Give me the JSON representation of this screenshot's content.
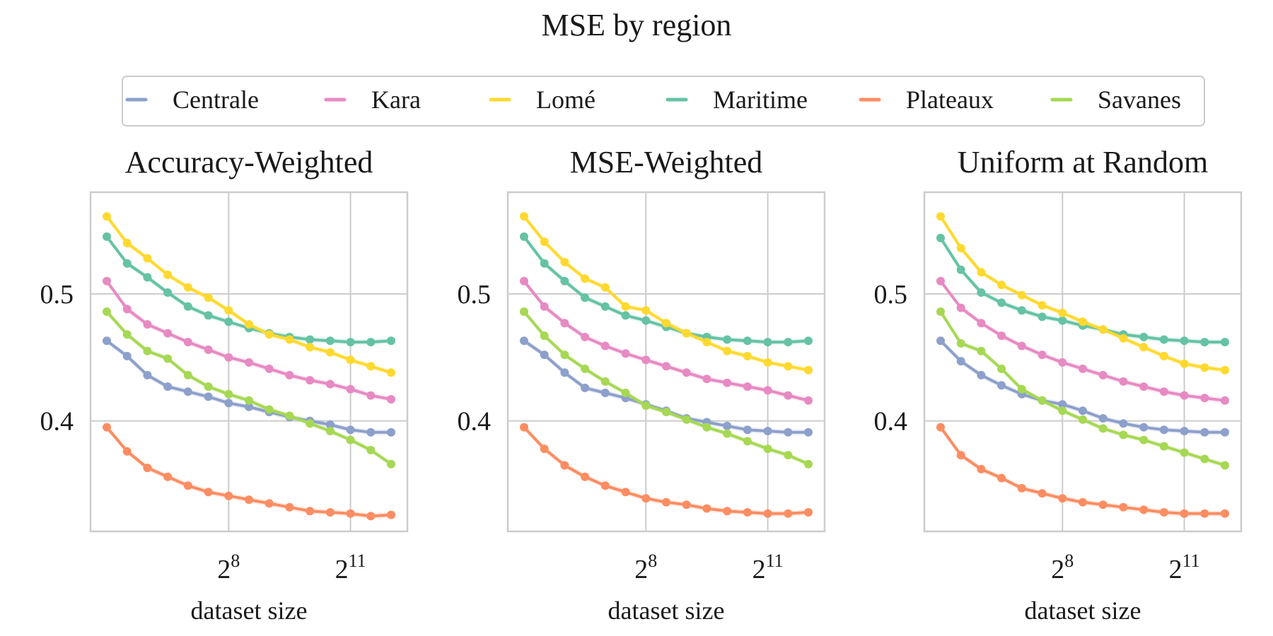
{
  "chart_data": {
    "type": "line",
    "title": "MSE by region",
    "xscale": "log2",
    "x": [
      32,
      45.25,
      64,
      90.5,
      128,
      181,
      256,
      362,
      512,
      724,
      1024,
      1448,
      2048,
      2896,
      4096
    ],
    "xticks": [
      {
        "value": 256,
        "base": "2",
        "exp": "8"
      },
      {
        "value": 2048,
        "base": "2",
        "exp": "11"
      }
    ],
    "xlim_log2": [
      4.6,
      12.4
    ],
    "ylim": [
      0.313,
      0.58
    ],
    "yticks": [
      {
        "value": 0.4,
        "label": "0.4"
      },
      {
        "value": 0.5,
        "label": "0.5"
      }
    ],
    "legend": {
      "position": "top-center",
      "entries": [
        "Centrale",
        "Kara",
        "Lomé",
        "Maritime",
        "Plateaux",
        "Savanes"
      ]
    },
    "series_colors": {
      "Centrale": "#8da0cb",
      "Kara": "#e78ac3",
      "Lomé": "#ffd92f",
      "Maritime": "#66c2a5",
      "Plateaux": "#fc8d62",
      "Savanes": "#a6d854"
    },
    "panels": [
      {
        "title": "Accuracy-Weighted",
        "xlabel": "dataset size",
        "series": [
          {
            "name": "Centrale",
            "values": [
              0.463,
              0.451,
              0.436,
              0.427,
              0.423,
              0.419,
              0.414,
              0.411,
              0.407,
              0.403,
              0.4,
              0.397,
              0.393,
              0.391,
              0.391
            ]
          },
          {
            "name": "Kara",
            "values": [
              0.51,
              0.488,
              0.476,
              0.469,
              0.462,
              0.456,
              0.45,
              0.446,
              0.441,
              0.436,
              0.432,
              0.429,
              0.425,
              0.42,
              0.417
            ]
          },
          {
            "name": "Lomé",
            "values": [
              0.561,
              0.54,
              0.528,
              0.515,
              0.505,
              0.497,
              0.487,
              0.476,
              0.468,
              0.464,
              0.458,
              0.454,
              0.448,
              0.443,
              0.438
            ]
          },
          {
            "name": "Maritime",
            "values": [
              0.545,
              0.524,
              0.513,
              0.501,
              0.49,
              0.483,
              0.478,
              0.473,
              0.469,
              0.466,
              0.464,
              0.463,
              0.462,
              0.462,
              0.463
            ]
          },
          {
            "name": "Savanes",
            "values": [
              0.486,
              0.468,
              0.455,
              0.449,
              0.436,
              0.427,
              0.421,
              0.416,
              0.409,
              0.404,
              0.398,
              0.392,
              0.385,
              0.377,
              0.366
            ]
          },
          {
            "name": "Plateaux",
            "values": [
              0.395,
              0.376,
              0.363,
              0.356,
              0.349,
              0.344,
              0.341,
              0.338,
              0.335,
              0.332,
              0.329,
              0.328,
              0.327,
              0.325,
              0.326
            ]
          }
        ]
      },
      {
        "title": "MSE-Weighted",
        "xlabel": "dataset size",
        "series": [
          {
            "name": "Centrale",
            "values": [
              0.463,
              0.452,
              0.438,
              0.426,
              0.422,
              0.418,
              0.413,
              0.408,
              0.402,
              0.399,
              0.396,
              0.393,
              0.392,
              0.391,
              0.391
            ]
          },
          {
            "name": "Kara",
            "values": [
              0.51,
              0.49,
              0.477,
              0.466,
              0.459,
              0.453,
              0.448,
              0.443,
              0.438,
              0.433,
              0.43,
              0.427,
              0.424,
              0.42,
              0.416
            ]
          },
          {
            "name": "Lomé",
            "values": [
              0.561,
              0.541,
              0.525,
              0.512,
              0.505,
              0.49,
              0.487,
              0.477,
              0.469,
              0.462,
              0.455,
              0.451,
              0.446,
              0.443,
              0.44
            ]
          },
          {
            "name": "Maritime",
            "values": [
              0.545,
              0.524,
              0.51,
              0.497,
              0.49,
              0.483,
              0.479,
              0.474,
              0.469,
              0.466,
              0.464,
              0.463,
              0.462,
              0.462,
              0.463
            ]
          },
          {
            "name": "Savanes",
            "values": [
              0.486,
              0.467,
              0.452,
              0.441,
              0.431,
              0.422,
              0.412,
              0.407,
              0.401,
              0.395,
              0.39,
              0.384,
              0.378,
              0.373,
              0.366
            ]
          },
          {
            "name": "Plateaux",
            "values": [
              0.395,
              0.378,
              0.365,
              0.356,
              0.349,
              0.344,
              0.339,
              0.336,
              0.334,
              0.331,
              0.329,
              0.328,
              0.327,
              0.327,
              0.328
            ]
          }
        ]
      },
      {
        "title": "Uniform at Random",
        "xlabel": "dataset size",
        "series": [
          {
            "name": "Centrale",
            "values": [
              0.463,
              0.447,
              0.436,
              0.428,
              0.421,
              0.416,
              0.413,
              0.408,
              0.402,
              0.398,
              0.395,
              0.393,
              0.392,
              0.391,
              0.391
            ]
          },
          {
            "name": "Kara",
            "values": [
              0.51,
              0.489,
              0.477,
              0.467,
              0.459,
              0.452,
              0.446,
              0.441,
              0.436,
              0.431,
              0.427,
              0.423,
              0.42,
              0.418,
              0.416
            ]
          },
          {
            "name": "Lomé",
            "values": [
              0.561,
              0.536,
              0.517,
              0.507,
              0.499,
              0.491,
              0.485,
              0.478,
              0.472,
              0.465,
              0.458,
              0.451,
              0.445,
              0.442,
              0.44
            ]
          },
          {
            "name": "Maritime",
            "values": [
              0.544,
              0.519,
              0.501,
              0.493,
              0.487,
              0.482,
              0.479,
              0.475,
              0.472,
              0.468,
              0.466,
              0.464,
              0.463,
              0.462,
              0.462
            ]
          },
          {
            "name": "Savanes",
            "values": [
              0.486,
              0.461,
              0.455,
              0.441,
              0.425,
              0.416,
              0.408,
              0.401,
              0.394,
              0.389,
              0.385,
              0.38,
              0.375,
              0.37,
              0.365
            ]
          },
          {
            "name": "Plateaux",
            "values": [
              0.395,
              0.373,
              0.362,
              0.355,
              0.347,
              0.343,
              0.339,
              0.336,
              0.334,
              0.332,
              0.33,
              0.328,
              0.327,
              0.327,
              0.327
            ]
          }
        ]
      }
    ]
  }
}
